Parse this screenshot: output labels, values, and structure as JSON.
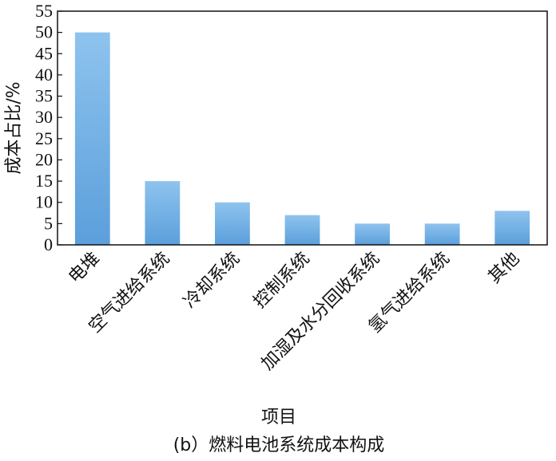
{
  "chart_data": {
    "type": "bar",
    "title": "",
    "caption": "(b）燃料电池系统成本构成",
    "xlabel": "项目",
    "ylabel": "成本占比/%",
    "categories": [
      "电堆",
      "空气进给系统",
      "冷却系统",
      "控制系统",
      "加湿及水分回收系统",
      "氢气进给系统",
      "其他"
    ],
    "values": [
      50,
      15,
      10,
      7,
      5,
      5,
      8
    ],
    "ylim": [
      0,
      55
    ],
    "yticks": [
      0,
      5,
      10,
      15,
      20,
      25,
      30,
      35,
      40,
      45,
      50,
      55
    ],
    "grid": false,
    "legend": "none",
    "bar_color_top": "#8ec3ee",
    "bar_color_bottom": "#5b9fdb"
  }
}
